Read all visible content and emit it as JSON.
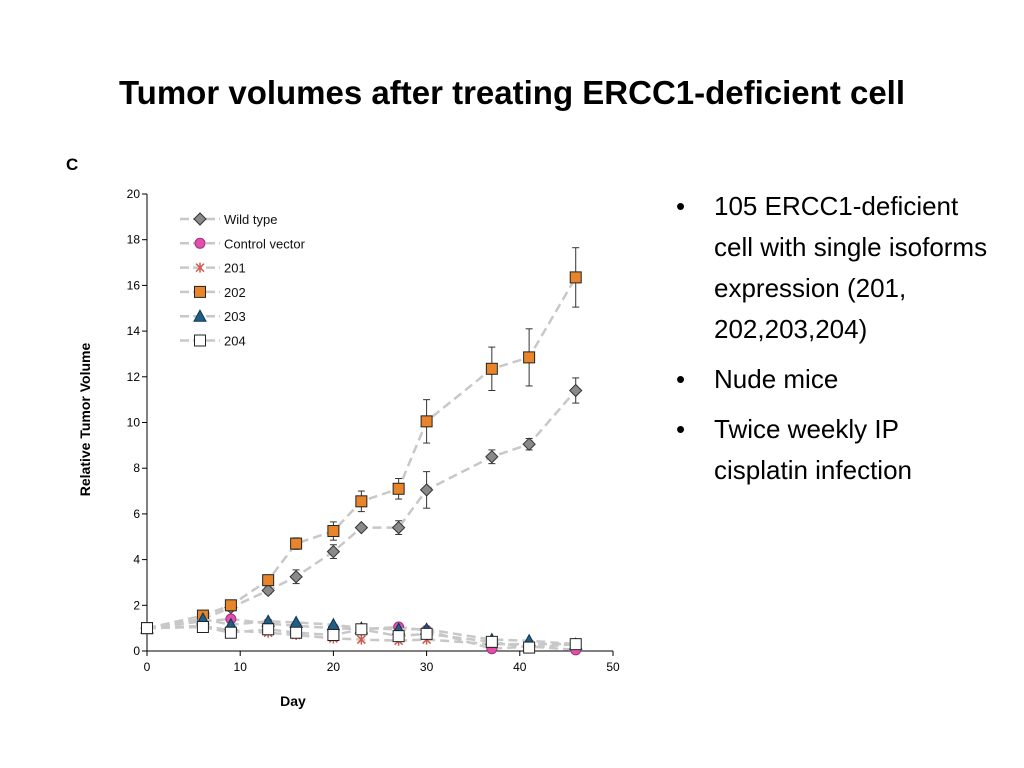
{
  "slide": {
    "title": "Tumor volumes after treating ERCC1-deficient cell",
    "bullets": [
      "105 ERCC1-deficient cell with single isoforms expression (201, 202,203,204)",
      "Nude mice",
      "Twice weekly IP cisplatin infection"
    ],
    "bullet_symbol": "•"
  },
  "chart_data": {
    "type": "line",
    "panel_label": "C",
    "xlabel": "Day",
    "ylabel": "Relative Tumor Volume",
    "xlim": [
      0,
      50
    ],
    "ylim": [
      0,
      20
    ],
    "xticks": [
      0,
      10,
      20,
      30,
      40,
      50
    ],
    "yticks": [
      0,
      2,
      4,
      6,
      8,
      10,
      12,
      14,
      16,
      18,
      20
    ],
    "grid": false,
    "legend_position": "top-left",
    "line_color": "#c8c8c8",
    "series": [
      {
        "name": "Wild type",
        "marker": "diamond",
        "color": "#8a8a8a",
        "x": [
          0,
          6,
          9,
          13,
          16,
          20,
          23,
          27,
          30,
          37,
          41,
          46
        ],
        "y": [
          1.0,
          1.4,
          1.9,
          2.65,
          3.25,
          4.35,
          5.4,
          5.4,
          7.05,
          8.5,
          9.05,
          11.4
        ],
        "err": [
          0,
          0.1,
          0.15,
          0.15,
          0.3,
          0.3,
          0.1,
          0.3,
          0.8,
          0.3,
          0.25,
          0.55
        ]
      },
      {
        "name": "Control vector",
        "marker": "circle",
        "color": "#e24fae",
        "x": [
          0,
          6,
          9,
          13,
          16,
          20,
          23,
          27,
          30,
          37,
          41,
          46
        ],
        "y": [
          1.0,
          1.3,
          1.4,
          1.2,
          1.1,
          1.0,
          0.95,
          1.05,
          0.9,
          0.1,
          0.2,
          0.05
        ],
        "err": [
          0,
          0,
          0,
          0,
          0,
          0,
          0,
          0,
          0,
          0,
          0,
          0
        ]
      },
      {
        "name": "201",
        "marker": "x",
        "color": "#d2574d",
        "x": [
          0,
          6,
          9,
          13,
          16,
          20,
          23,
          27,
          30,
          37,
          41,
          46
        ],
        "y": [
          1.0,
          1.1,
          0.9,
          0.8,
          0.7,
          0.55,
          0.5,
          0.45,
          0.5,
          0.3,
          0.3,
          0.3
        ],
        "err": [
          0,
          0,
          0,
          0,
          0,
          0,
          0,
          0,
          0,
          0,
          0,
          0
        ]
      },
      {
        "name": "202",
        "marker": "square",
        "color": "#e8852a",
        "x": [
          0,
          6,
          9,
          13,
          16,
          20,
          23,
          27,
          30,
          37,
          41,
          46
        ],
        "y": [
          1.0,
          1.55,
          2.0,
          3.1,
          4.7,
          5.25,
          6.55,
          7.1,
          10.05,
          12.35,
          12.85,
          16.35
        ],
        "err": [
          0,
          0.1,
          0.1,
          0.15,
          0.25,
          0.4,
          0.45,
          0.45,
          0.95,
          0.95,
          1.25,
          1.3
        ]
      },
      {
        "name": "203",
        "marker": "triangle",
        "color": "#1f5f86",
        "x": [
          0,
          6,
          9,
          13,
          16,
          20,
          23,
          27,
          30,
          37,
          41,
          46
        ],
        "y": [
          1.0,
          1.4,
          1.15,
          1.3,
          1.25,
          1.15,
          1.0,
          0.95,
          0.95,
          0.5,
          0.45,
          0.3
        ],
        "err": [
          0,
          0,
          0,
          0,
          0,
          0,
          0,
          0,
          0,
          0,
          0,
          0
        ]
      },
      {
        "name": "204",
        "marker": "open-square",
        "color": "#ffffff",
        "x": [
          0,
          6,
          9,
          13,
          16,
          20,
          23,
          27,
          30,
          37,
          41,
          46
        ],
        "y": [
          1.0,
          1.05,
          0.8,
          0.95,
          0.8,
          0.7,
          0.95,
          0.65,
          0.75,
          0.4,
          0.15,
          0.3
        ],
        "err": [
          0,
          0,
          0,
          0,
          0,
          0,
          0,
          0,
          0,
          0,
          0,
          0
        ]
      }
    ]
  }
}
